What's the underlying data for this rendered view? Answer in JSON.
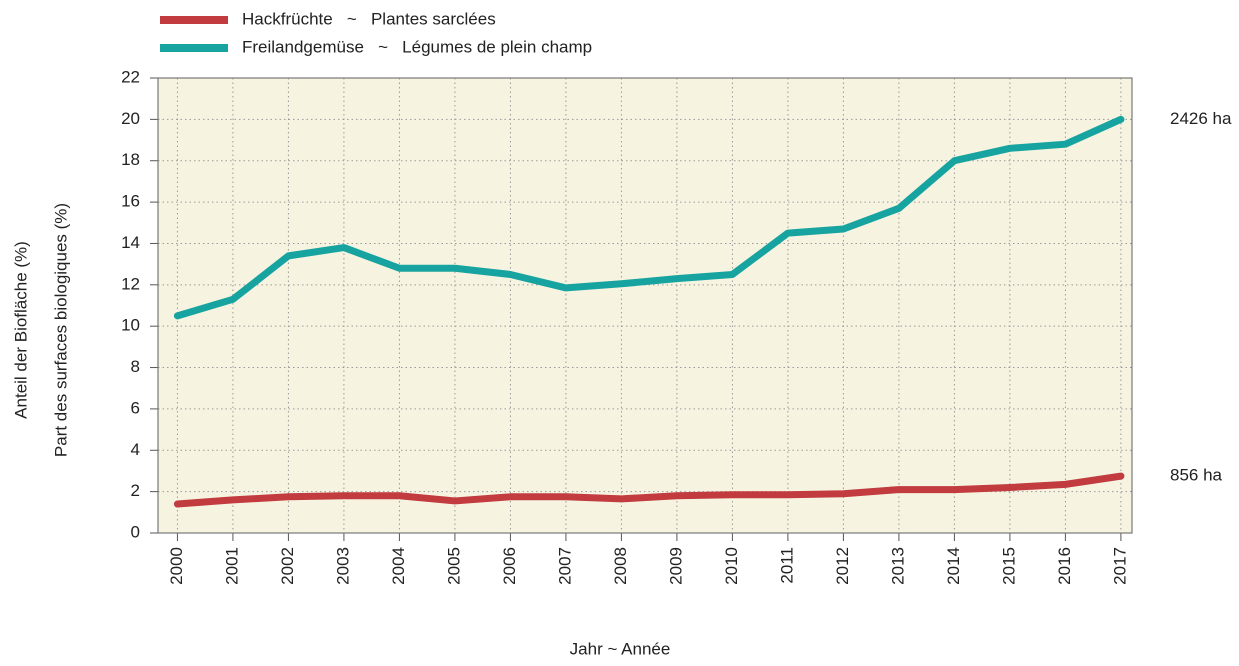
{
  "chart_data": {
    "type": "line",
    "ylabel": [
      "Anteil der Biofläche (%)",
      "Part des surfaces biologiques (%)"
    ],
    "xlabel": "Jahr   ~   Année",
    "x": [
      2000,
      2001,
      2002,
      2003,
      2004,
      2005,
      2006,
      2007,
      2008,
      2009,
      2010,
      2011,
      2012,
      2013,
      2014,
      2015,
      2016,
      2017
    ],
    "series": [
      {
        "name": "Hackfrüchte   ~   Plantes sarclées",
        "color": "#c13b3f",
        "end_label": "856 ha",
        "values": [
          1.4,
          1.6,
          1.75,
          1.8,
          1.8,
          1.55,
          1.75,
          1.75,
          1.65,
          1.8,
          1.85,
          1.85,
          1.9,
          2.1,
          2.1,
          2.2,
          2.35,
          2.75
        ]
      },
      {
        "name": "Freilandgemüse   ~   Légumes de plein champ",
        "color": "#17a3a0",
        "end_label": "2426 ha",
        "values": [
          10.5,
          11.3,
          13.4,
          13.8,
          12.8,
          12.8,
          12.5,
          11.85,
          12.05,
          12.3,
          12.5,
          14.5,
          14.7,
          15.7,
          18.0,
          18.6,
          18.8,
          20.0
        ]
      }
    ],
    "xlim": [
      1999.65,
      2017.2
    ],
    "xticks": [
      2000,
      2001,
      2002,
      2003,
      2004,
      2005,
      2006,
      2007,
      2008,
      2009,
      2010,
      2011,
      2012,
      2013,
      2014,
      2015,
      2016,
      2017
    ],
    "ylim": [
      0,
      22
    ],
    "yticks": [
      0,
      2,
      4,
      6,
      8,
      10,
      12,
      14,
      16,
      18,
      20,
      22
    ],
    "grid": true,
    "legend": "top-left",
    "plot_background": "#f6f4e1"
  }
}
